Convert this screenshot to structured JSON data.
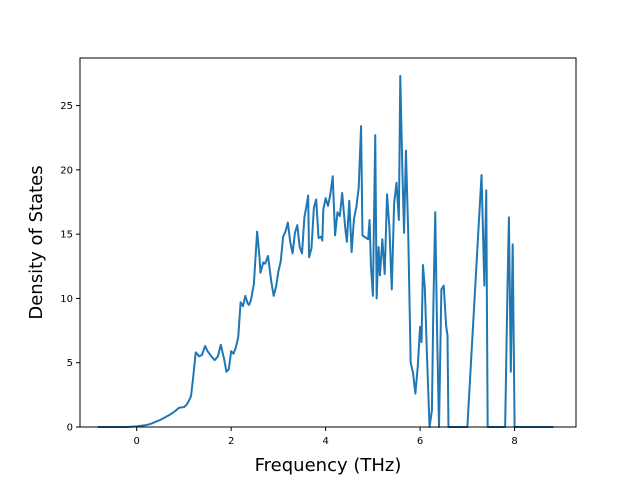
{
  "chart_data": {
    "type": "line",
    "title": "",
    "xlabel": "Frequency (THz)",
    "ylabel": "Density of States",
    "xlim": [
      -1.2,
      9.3
    ],
    "ylim": [
      0,
      28.7
    ],
    "xticks": [
      0,
      2,
      4,
      6,
      8
    ],
    "yticks": [
      0,
      5,
      10,
      15,
      20,
      25
    ],
    "grid": false,
    "legend": "none",
    "series": [
      {
        "name": "",
        "color": "#1f77b4",
        "x": [
          -0.8,
          -0.5,
          -0.2,
          0.0,
          0.1,
          0.2,
          0.3,
          0.4,
          0.5,
          0.6,
          0.7,
          0.8,
          0.9,
          1.0,
          1.05,
          1.1,
          1.15,
          1.2,
          1.25,
          1.28,
          1.32,
          1.38,
          1.45,
          1.5,
          1.58,
          1.65,
          1.72,
          1.78,
          1.85,
          1.9,
          1.95,
          2.0,
          2.05,
          2.1,
          2.15,
          2.2,
          2.25,
          2.3,
          2.35,
          2.38,
          2.42,
          2.48,
          2.55,
          2.6,
          2.62,
          2.68,
          2.72,
          2.78,
          2.85,
          2.9,
          2.95,
          3.0,
          3.05,
          3.1,
          3.15,
          3.2,
          3.25,
          3.3,
          3.35,
          3.4,
          3.45,
          3.5,
          3.55,
          3.6,
          3.63,
          3.65,
          3.7,
          3.75,
          3.8,
          3.85,
          3.9,
          3.93,
          3.95,
          4.0,
          4.05,
          4.1,
          4.15,
          4.2,
          4.25,
          4.3,
          4.35,
          4.38,
          4.42,
          4.45,
          4.5,
          4.55,
          4.6,
          4.65,
          4.7,
          4.75,
          4.78,
          4.82,
          4.86,
          4.9,
          4.93,
          4.96,
          5.0,
          5.05,
          5.08,
          5.12,
          5.15,
          5.2,
          5.25,
          5.3,
          5.35,
          5.4,
          5.45,
          5.5,
          5.55,
          5.58,
          5.62,
          5.66,
          5.7,
          5.75,
          5.8,
          5.85,
          5.9,
          5.95,
          6.0,
          6.03,
          6.06,
          6.1,
          6.14,
          6.2,
          6.25,
          6.28,
          6.32,
          6.36,
          6.4,
          6.45,
          6.5,
          6.55,
          6.58,
          6.6,
          6.65,
          6.7,
          6.75,
          6.8,
          7.0,
          7.3,
          7.36,
          7.4,
          7.43,
          7.47,
          7.5,
          7.55,
          7.6,
          7.7,
          7.8,
          7.85,
          7.88,
          7.92,
          7.96,
          8.0,
          8.05,
          8.3,
          8.8
        ],
        "y": [
          0,
          0,
          0,
          0.05,
          0.1,
          0.15,
          0.25,
          0.4,
          0.55,
          0.75,
          0.95,
          1.2,
          1.5,
          1.55,
          1.7,
          2.0,
          2.4,
          4.0,
          5.8,
          5.7,
          5.5,
          5.6,
          6.3,
          5.9,
          5.5,
          5.2,
          5.5,
          6.4,
          5.3,
          4.3,
          4.5,
          5.9,
          5.7,
          6.2,
          7.0,
          9.7,
          9.4,
          10.2,
          9.6,
          9.5,
          9.9,
          11.1,
          15.2,
          13.2,
          12.0,
          12.8,
          12.7,
          13.3,
          11.3,
          10.2,
          10.9,
          12.1,
          12.9,
          14.8,
          15.2,
          15.9,
          14.4,
          13.5,
          15.1,
          15.7,
          14.0,
          13.5,
          16.3,
          17.3,
          18.0,
          13.2,
          13.9,
          17.0,
          17.7,
          14.7,
          14.8,
          14.5,
          16.9,
          17.8,
          17.2,
          18.1,
          19.5,
          14.9,
          16.7,
          16.4,
          18.2,
          16.9,
          15.3,
          14.4,
          17.6,
          13.6,
          16.2,
          17.1,
          18.6,
          23.4,
          14.9,
          14.8,
          14.7,
          14.6,
          16.1,
          12.5,
          10.2,
          22.7,
          10.0,
          14.0,
          11.8,
          14.6,
          11.9,
          18.1,
          15.5,
          10.7,
          17.4,
          19.0,
          16.1,
          27.3,
          20.6,
          15.1,
          21.5,
          14.8,
          5.0,
          4.2,
          2.6,
          4.7,
          7.8,
          6.6,
          12.6,
          10.8,
          6.1,
          0.0,
          1.3,
          9.3,
          16.7,
          7.2,
          0.0,
          10.7,
          11.0,
          7.9,
          7.1,
          0.0,
          0.0,
          0.0,
          0.0,
          0.0,
          0.0,
          19.6,
          11.0,
          18.4,
          0.0,
          0.0,
          0.0,
          0.0,
          0.0,
          0.0,
          0.0,
          10.9,
          16.3,
          4.3,
          14.2,
          0.0,
          0.0,
          0.0,
          0.0
        ]
      }
    ]
  }
}
